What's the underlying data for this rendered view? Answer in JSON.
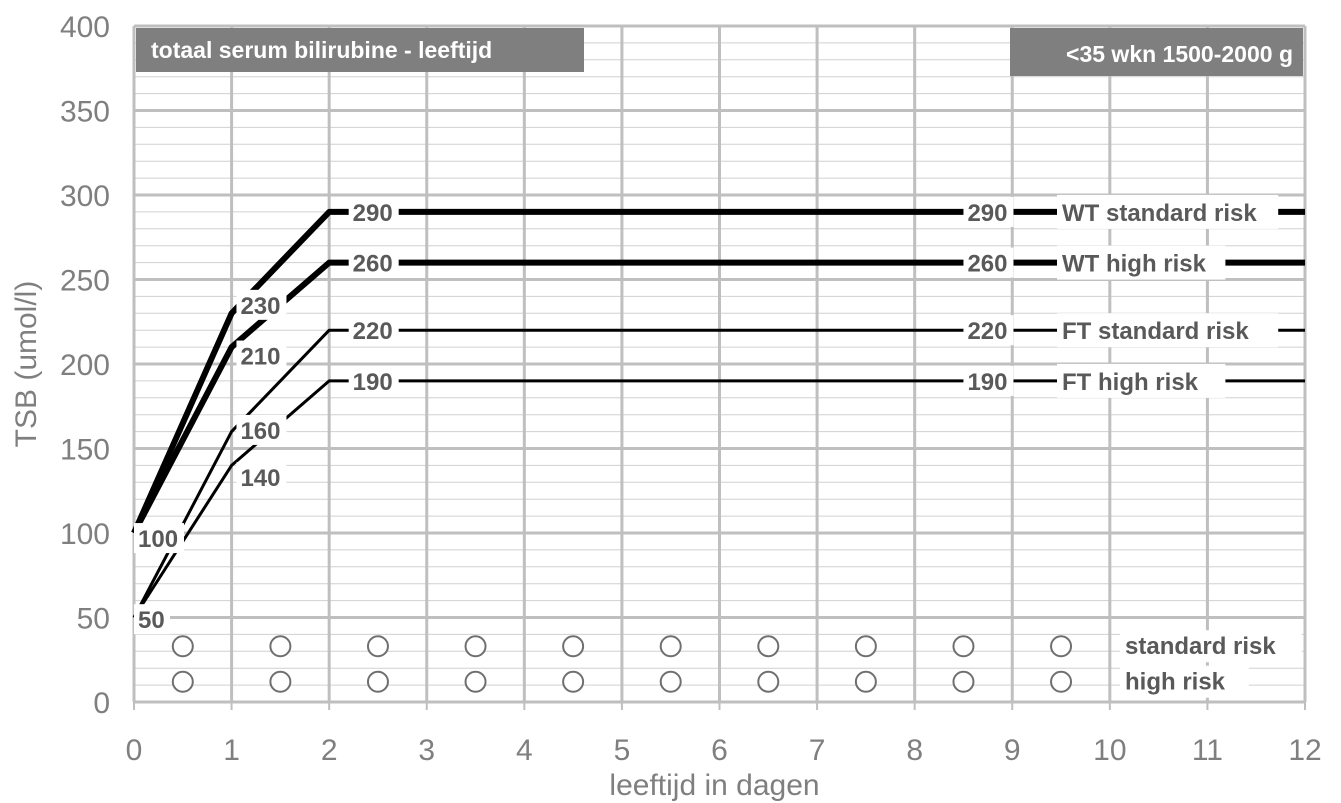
{
  "chart_data": {
    "type": "line",
    "title": "totaal serum bilirubine - leeftijd",
    "subtitle": "<35 wkn 1500-2000 g",
    "xlabel": "leeftijd in dagen",
    "ylabel": "TSB (umol/l)",
    "xlim": [
      0,
      12
    ],
    "ylim": [
      0,
      400
    ],
    "x_ticks": [
      0,
      1,
      2,
      3,
      4,
      5,
      6,
      7,
      8,
      9,
      10,
      11,
      12
    ],
    "y_ticks": [
      0,
      50,
      100,
      150,
      200,
      250,
      300,
      350,
      400
    ],
    "grid": true,
    "series": [
      {
        "name": "WT standard risk",
        "weight": "thick",
        "points": [
          [
            0,
            100
          ],
          [
            1,
            230
          ],
          [
            2,
            290
          ],
          [
            12,
            290
          ]
        ]
      },
      {
        "name": "WT high risk",
        "weight": "thick",
        "points": [
          [
            0,
            100
          ],
          [
            1,
            210
          ],
          [
            2,
            260
          ],
          [
            12,
            260
          ]
        ]
      },
      {
        "name": "FT standard risk",
        "weight": "thin",
        "points": [
          [
            0,
            50
          ],
          [
            1,
            160
          ],
          [
            2,
            220
          ],
          [
            12,
            220
          ]
        ]
      },
      {
        "name": "FT high risk",
        "weight": "thin",
        "points": [
          [
            0,
            50
          ],
          [
            1,
            140
          ],
          [
            2,
            190
          ],
          [
            12,
            190
          ]
        ]
      }
    ],
    "value_labels": [
      {
        "text": "290",
        "x": 2.2,
        "y": 290
      },
      {
        "text": "290",
        "x": 8.5,
        "y": 290
      },
      {
        "text": "260",
        "x": 2.2,
        "y": 260
      },
      {
        "text": "260",
        "x": 8.5,
        "y": 260
      },
      {
        "text": "220",
        "x": 2.2,
        "y": 220
      },
      {
        "text": "220",
        "x": 8.5,
        "y": 220
      },
      {
        "text": "190",
        "x": 2.2,
        "y": 190
      },
      {
        "text": "190",
        "x": 8.5,
        "y": 190
      },
      {
        "text": "230",
        "x": 1.05,
        "y": 235
      },
      {
        "text": "210",
        "x": 1.05,
        "y": 205
      },
      {
        "text": "160",
        "x": 1.05,
        "y": 161
      },
      {
        "text": "140",
        "x": 1.05,
        "y": 133
      },
      {
        "text": "100",
        "x": 0.0,
        "y": 97
      },
      {
        "text": "50",
        "x": 0.0,
        "y": 49
      }
    ],
    "row_markers": [
      {
        "label": "standard risk",
        "y": 33,
        "x": [
          0.5,
          1.5,
          2.5,
          3.5,
          4.5,
          5.5,
          6.5,
          7.5,
          8.5,
          9.5
        ]
      },
      {
        "label": "high risk",
        "y": 12,
        "x": [
          0.5,
          1.5,
          2.5,
          3.5,
          4.5,
          5.5,
          6.5,
          7.5,
          8.5,
          9.5
        ]
      }
    ]
  },
  "colors": {
    "major_grid": "#bfbfbf",
    "minor_grid": "#d0d0d0",
    "line": "#000000",
    "header_bg": "#7f7f7f",
    "axis_text": "#7f7f7f",
    "label_text": "#595959"
  }
}
